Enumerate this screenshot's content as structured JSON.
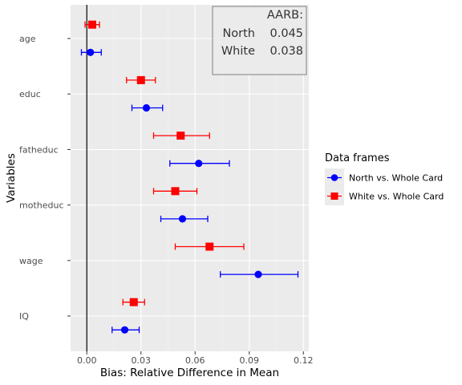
{
  "chart_data": {
    "type": "scatter",
    "xlabel": "Bias: Relative Difference in Mean",
    "ylabel": "Variables",
    "xlim": [
      -0.009,
      0.123
    ],
    "x_ticks": [
      0,
      0.03,
      0.06,
      0.09,
      0.12
    ],
    "x_tick_labels": [
      "0.00",
      "0.03",
      "0.06",
      "0.09",
      "0.12"
    ],
    "categories": [
      "age",
      "educ",
      "fatheduc",
      "motheduc",
      "wage",
      "IQ"
    ],
    "grid": true,
    "vline_at": 0,
    "legend": {
      "title": "Data frames",
      "position": "right"
    },
    "series": [
      {
        "name": "North vs. Whole Card",
        "color": "#0000ff",
        "marker": "circle",
        "values": [
          0.002,
          0.033,
          0.062,
          0.053,
          0.095,
          0.021
        ],
        "lower": [
          -0.003,
          0.025,
          0.046,
          0.041,
          0.074,
          0.014
        ],
        "upper": [
          0.008,
          0.042,
          0.079,
          0.067,
          0.117,
          0.029
        ]
      },
      {
        "name": "White vs. Whole Card",
        "color": "#ff0000",
        "marker": "square",
        "values": [
          0.003,
          0.03,
          0.052,
          0.049,
          0.068,
          0.026
        ],
        "lower": [
          -0.001,
          0.022,
          0.037,
          0.037,
          0.049,
          0.02
        ],
        "upper": [
          0.007,
          0.038,
          0.068,
          0.061,
          0.087,
          0.032
        ]
      }
    ],
    "aarb": {
      "title": "AARB:",
      "rows": [
        {
          "label": "North",
          "value": "0.045"
        },
        {
          "label": "White",
          "value": "0.038"
        }
      ]
    }
  }
}
